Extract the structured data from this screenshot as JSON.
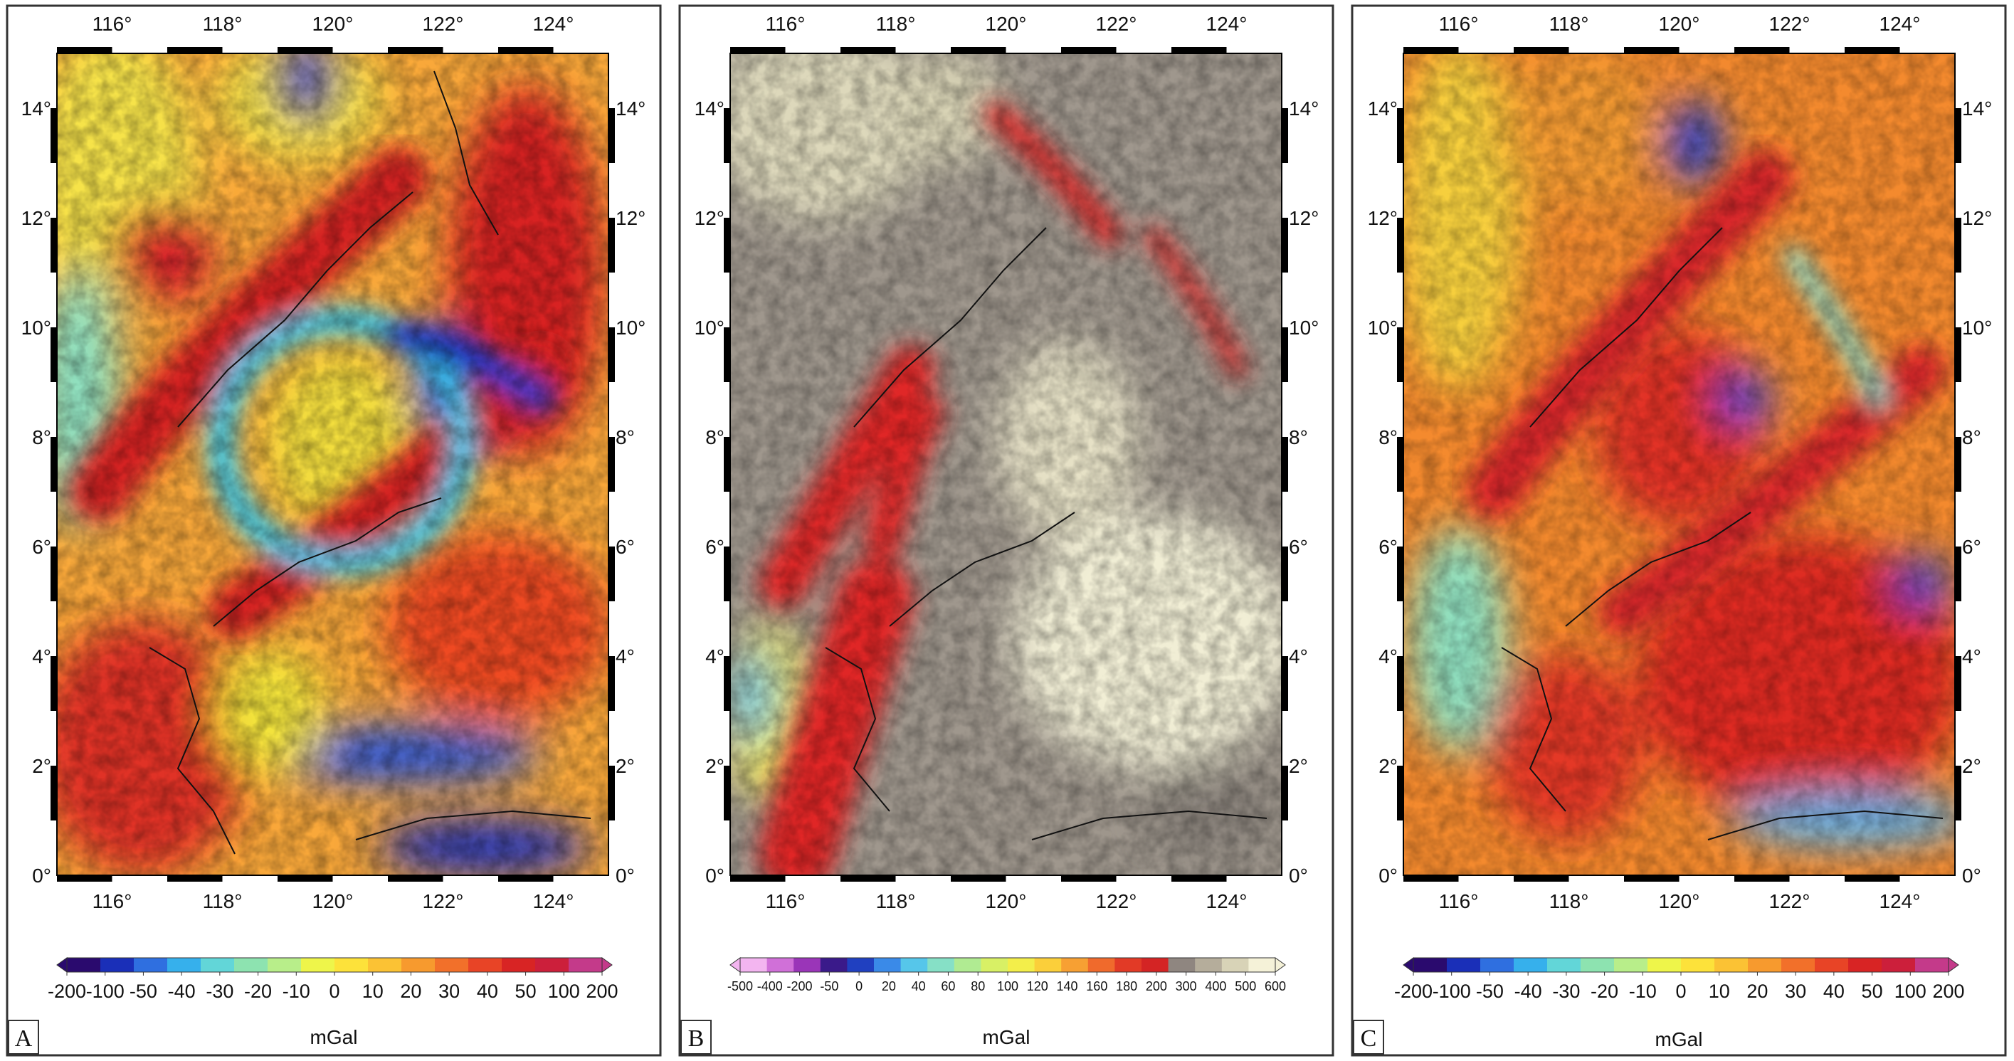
{
  "panels": [
    {
      "letter": "A",
      "lon_ticks": [
        "116°",
        "118°",
        "120°",
        "122°",
        "124°"
      ],
      "lat_ticks": [
        "0°",
        "2°",
        "4°",
        "6°",
        "8°",
        "10°",
        "12°",
        "14°"
      ],
      "colorbar_labels": [
        "-200",
        "-100",
        "-50",
        "-40",
        "-30",
        "-20",
        "-10",
        "0",
        "10",
        "20",
        "30",
        "40",
        "50",
        "100",
        "200"
      ],
      "colorbar_colors": [
        "#2a0a6e",
        "#1a2fb8",
        "#2f6fe0",
        "#36b0ec",
        "#62d6d8",
        "#8de3b0",
        "#b8ee8a",
        "#eef54a",
        "#fde23a",
        "#fbc234",
        "#f79a2e",
        "#f2702a",
        "#e84426",
        "#d82424",
        "#cc1f3b",
        "#c43a8a"
      ],
      "unit": "mGal"
    },
    {
      "letter": "B",
      "lon_ticks": [
        "116°",
        "118°",
        "120°",
        "122°",
        "124°"
      ],
      "lat_ticks": [
        "0°",
        "2°",
        "4°",
        "6°",
        "8°",
        "10°",
        "12°",
        "14°"
      ],
      "colorbar_labels": [
        "-500",
        "-400",
        "-200",
        "-50",
        "0",
        "20",
        "40",
        "60",
        "80",
        "100",
        "120",
        "140",
        "160",
        "180",
        "200",
        "300",
        "400",
        "500",
        "600"
      ],
      "colorbar_colors": [
        "#f3b5f0",
        "#d070d8",
        "#9a35b8",
        "#3a1a8a",
        "#2040c0",
        "#3a8ae8",
        "#56c6ea",
        "#86e0c6",
        "#b0eb92",
        "#d8f065",
        "#f3ee4a",
        "#fbcf3a",
        "#f7a033",
        "#f06a2c",
        "#e23a26",
        "#d42424",
        "#8f8680",
        "#b5ad9b",
        "#d8d3b7",
        "#f5f2d8"
      ],
      "unit": "mGal"
    },
    {
      "letter": "C",
      "lon_ticks": [
        "116°",
        "118°",
        "120°",
        "122°",
        "124°"
      ],
      "lat_ticks": [
        "0°",
        "2°",
        "4°",
        "6°",
        "8°",
        "10°",
        "12°",
        "14°"
      ],
      "colorbar_labels": [
        "-200",
        "-100",
        "-50",
        "-40",
        "-30",
        "-20",
        "-10",
        "0",
        "10",
        "20",
        "30",
        "40",
        "50",
        "100",
        "200"
      ],
      "colorbar_colors": [
        "#2a0a6e",
        "#1a2fb8",
        "#2f6fe0",
        "#36b0ec",
        "#62d6d8",
        "#8de3b0",
        "#b8ee8a",
        "#eef54a",
        "#fde23a",
        "#fbc234",
        "#f79a2e",
        "#f2702a",
        "#e84426",
        "#d82424",
        "#cc1f3b",
        "#c43a8a"
      ],
      "unit": "mGal"
    }
  ]
}
